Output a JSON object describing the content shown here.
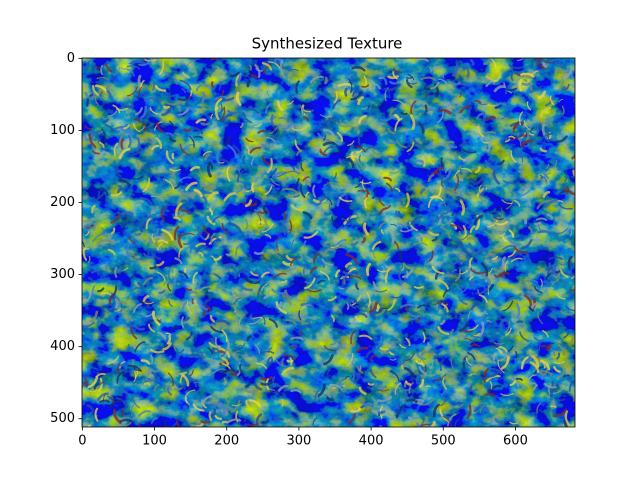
{
  "chart_data": {
    "type": "image",
    "title": "Synthesized Texture",
    "xlim": [
      -0.5,
      682.5
    ],
    "ylim": [
      511.5,
      -0.5
    ],
    "xticks": [
      0,
      100,
      200,
      300,
      400,
      500,
      600
    ],
    "yticks": [
      0,
      100,
      200,
      300,
      400,
      500
    ]
  }
}
